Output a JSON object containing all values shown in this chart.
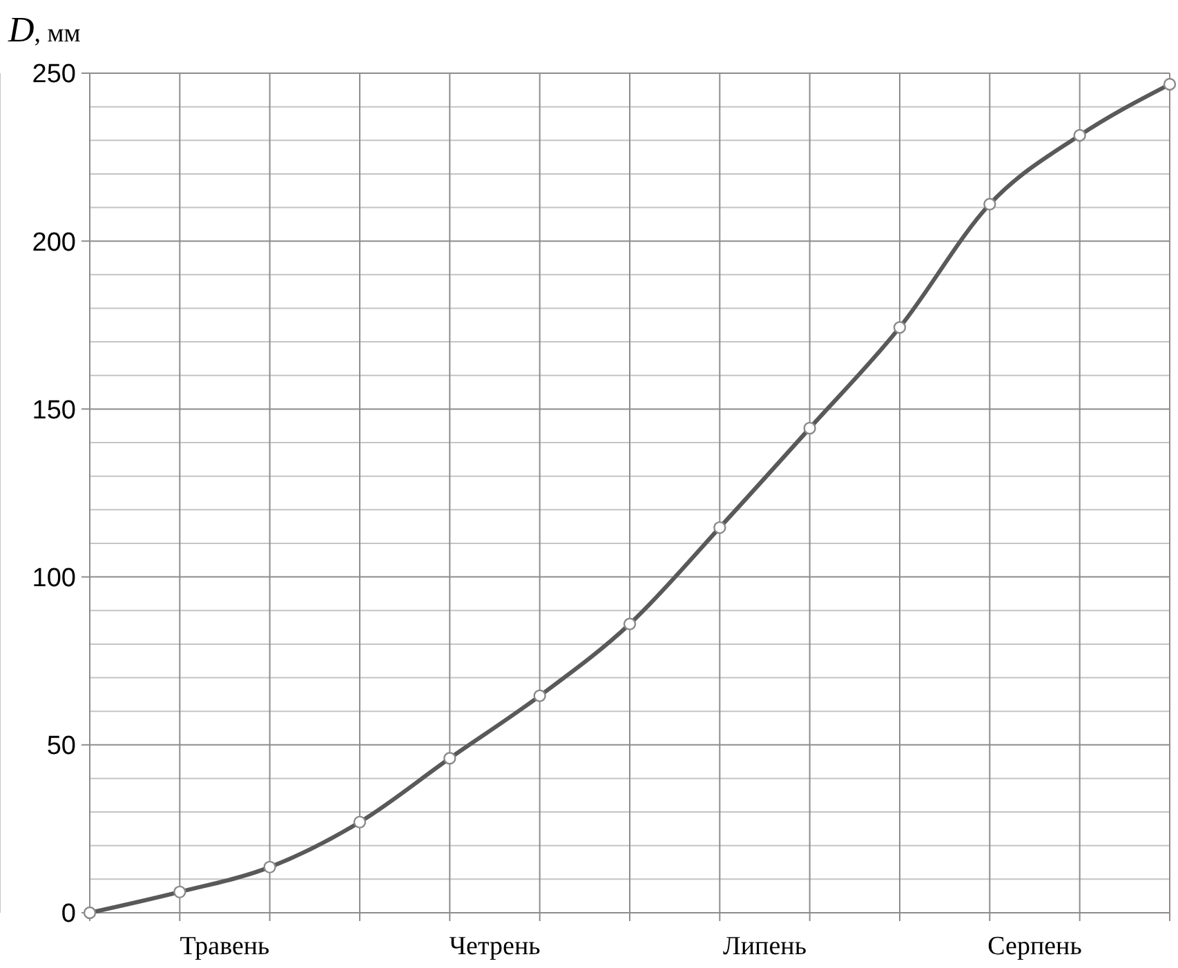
{
  "chart_data": {
    "type": "line",
    "ylabel": "D, мм",
    "categories": [
      null,
      null,
      null,
      null,
      null,
      null,
      null,
      null,
      null,
      null,
      null,
      null,
      null
    ],
    "series": [
      {
        "color": "#595959",
        "values": [
          0,
          6.2,
          13.6,
          27,
          46,
          64.6,
          86,
          114.7,
          144.3,
          174.3,
          211,
          231.5,
          246.7
        ]
      }
    ],
    "annotations": [
      "Травень",
      "Четрень",
      "Липень",
      "Серпень"
    ],
    "ylim": [
      0,
      250
    ],
    "yticks": [
      0,
      50,
      100,
      150,
      200,
      250
    ],
    "grid": true,
    "marker": "circle",
    "line_style": "solid"
  }
}
